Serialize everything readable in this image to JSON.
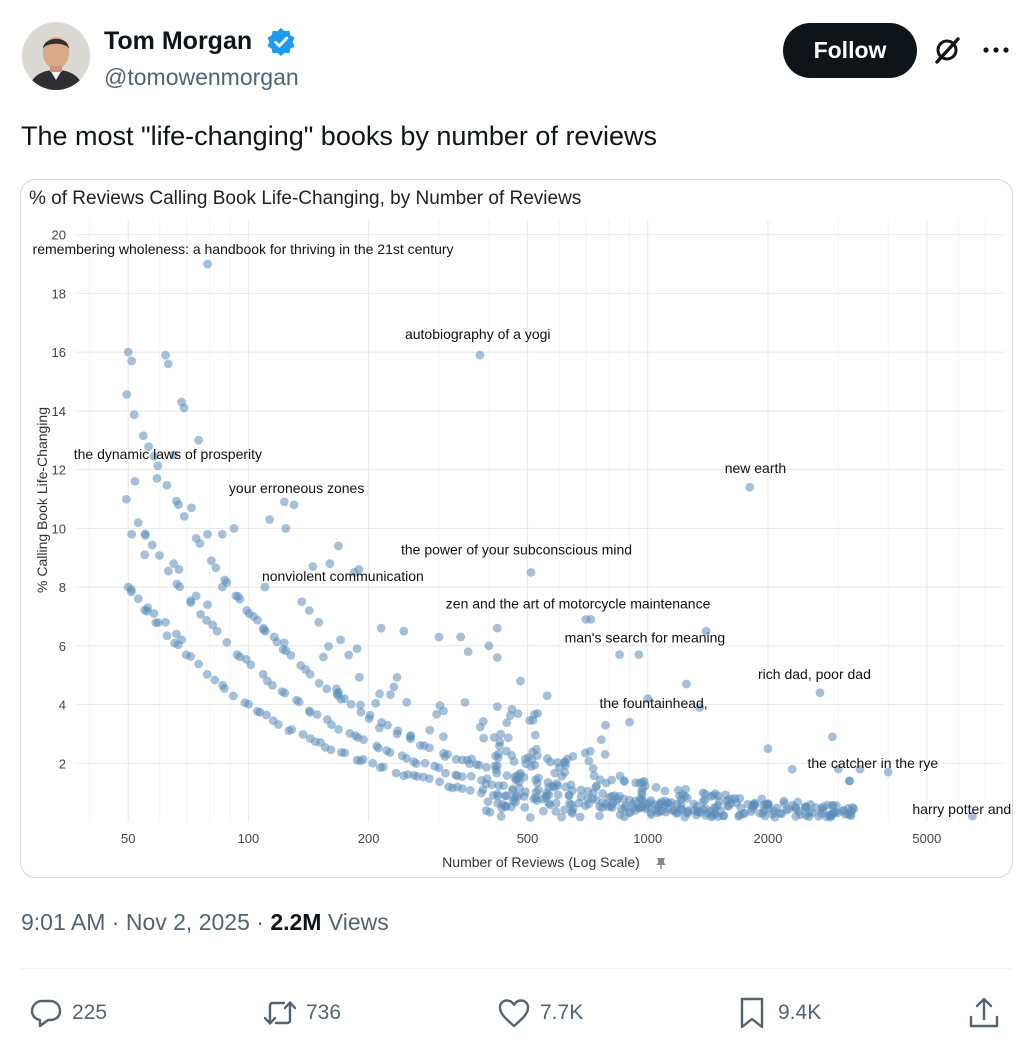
{
  "author": {
    "name": "Tom Morgan",
    "handle": "@tomowenmorgan",
    "verified_color": "#1d9bf0"
  },
  "follow_label": "Follow",
  "tweet": {
    "text": "The most \"life-changing\" books by number of reviews",
    "time": "9:01 AM",
    "date": "Nov 2, 2025",
    "views_count": "2.2M",
    "views_label": "Views",
    "sep": "·"
  },
  "actions": {
    "replies": "225",
    "reposts": "736",
    "likes": "7.7K",
    "bookmarks": "9.4K"
  },
  "chart_data": {
    "type": "scatter",
    "title": "% of Reviews Calling Book Life-Changing, by Number of Reviews",
    "xlabel": "Number of Reviews (Log Scale)",
    "ylabel": "% Calling Book Life-Changing",
    "xscale": "log",
    "xlim": [
      37,
      7800
    ],
    "ylim": [
      0,
      20.5
    ],
    "xticks": [
      50,
      100,
      200,
      500,
      1000,
      2000,
      5000
    ],
    "yticks": [
      2,
      4,
      6,
      8,
      10,
      12,
      14,
      16,
      18,
      20
    ],
    "grid": true,
    "point_color": "#5b8db8",
    "labeled_points": [
      {
        "label": "remembering wholeness: a handbook for thriving in the 21st century",
        "x": 79,
        "y": 19.0
      },
      {
        "label": "autobiography of a yogi",
        "x": 380,
        "y": 15.9
      },
      {
        "label": "the dynamic laws of prosperity",
        "x": 65,
        "y": 12.5
      },
      {
        "label": "new earth",
        "x": 1800,
        "y": 11.4
      },
      {
        "label": "your erroneous zones",
        "x": 130,
        "y": 10.8
      },
      {
        "label": "the power of your subconscious mind",
        "x": 510,
        "y": 8.5
      },
      {
        "label": "nonviolent communication",
        "x": 110,
        "y": 8.0
      },
      {
        "label": "zen and the art of motorcycle maintenance",
        "x": 720,
        "y": 6.9
      },
      {
        "label": "man's search for meaning",
        "x": 850,
        "y": 5.7
      },
      {
        "label": "rich dad, poor dad",
        "x": 2700,
        "y": 4.4
      },
      {
        "label": "the fountainhead,",
        "x": 900,
        "y": 3.4
      },
      {
        "label": "the catcher in the rye",
        "x": 3200,
        "y": 1.4
      },
      {
        "label": "harry potter and the sorcerer's stone",
        "x": 6500,
        "y": 0.2
      }
    ],
    "points": [
      [
        50,
        16.0
      ],
      [
        51,
        15.7
      ],
      [
        62,
        15.9
      ],
      [
        63,
        15.6
      ],
      [
        68,
        14.3
      ],
      [
        69,
        14.1
      ],
      [
        75,
        13.0
      ],
      [
        52,
        11.6
      ],
      [
        59,
        11.7
      ],
      [
        72,
        10.7
      ],
      [
        51,
        9.8
      ],
      [
        55,
        9.1
      ],
      [
        65,
        8.8
      ],
      [
        67,
        8.6
      ],
      [
        79,
        9.8
      ],
      [
        86,
        9.8
      ],
      [
        92,
        10.0
      ],
      [
        113,
        10.3
      ],
      [
        123,
        10.9
      ],
      [
        124,
        10.0
      ],
      [
        50,
        8.0
      ],
      [
        53,
        7.6
      ],
      [
        56,
        7.3
      ],
      [
        58,
        7.1
      ],
      [
        62,
        6.8
      ],
      [
        66,
        6.4
      ],
      [
        68,
        6.2
      ],
      [
        74,
        7.7
      ],
      [
        79,
        7.4
      ],
      [
        86,
        8.0
      ],
      [
        93,
        7.7
      ],
      [
        99,
        7.2
      ],
      [
        103,
        7.0
      ],
      [
        109,
        6.6
      ],
      [
        116,
        6.3
      ],
      [
        123,
        6.1
      ],
      [
        136,
        7.5
      ],
      [
        142,
        7.2
      ],
      [
        145,
        8.7
      ],
      [
        160,
        8.8
      ],
      [
        168,
        9.4
      ],
      [
        184,
        8.5
      ],
      [
        189,
        8.6
      ],
      [
        150,
        6.8
      ],
      [
        170,
        6.2
      ],
      [
        187,
        5.9
      ],
      [
        215,
        6.6
      ],
      [
        245,
        6.5
      ],
      [
        300,
        6.3
      ],
      [
        340,
        6.3
      ],
      [
        355,
        5.8
      ],
      [
        400,
        6.0
      ],
      [
        420,
        6.6
      ],
      [
        420,
        5.6
      ],
      [
        480,
        4.8
      ],
      [
        530,
        3.7
      ],
      [
        560,
        4.3
      ],
      [
        700,
        6.9
      ],
      [
        1400,
        6.5
      ],
      [
        1350,
        3.9
      ],
      [
        1250,
        4.7
      ],
      [
        1000,
        4.2
      ],
      [
        950,
        5.7
      ],
      [
        2000,
        2.5
      ],
      [
        2300,
        1.8
      ],
      [
        2900,
        2.9
      ],
      [
        3000,
        1.8
      ],
      [
        3400,
        1.8
      ],
      [
        4000,
        1.7
      ],
      [
        3200,
        1.4
      ]
    ]
  }
}
